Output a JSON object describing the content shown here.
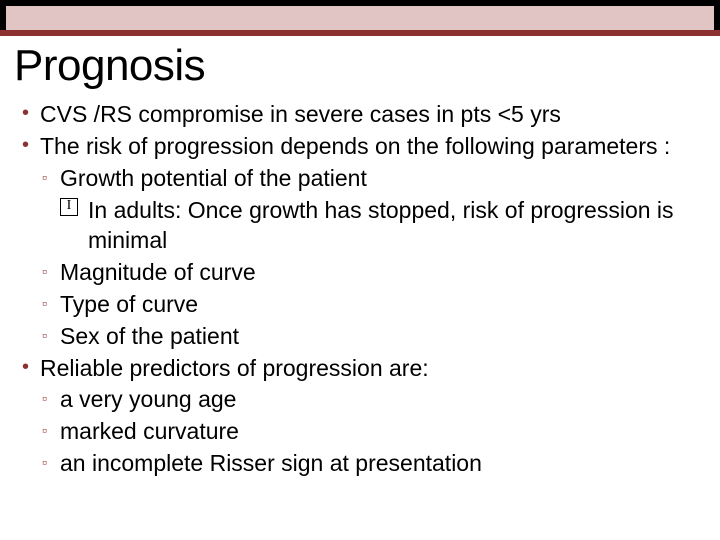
{
  "colors": {
    "accent": "#8c3030",
    "sub_bar": "#e1c5c5",
    "top": "#000000",
    "bg": "#ffffff",
    "text": "#000000"
  },
  "typography": {
    "title_fontsize": 44,
    "body_fontsize": 23,
    "font_family": "Trebuchet MS"
  },
  "title": "Prognosis",
  "bullets": [
    "CVS /RS compromise in severe cases in pts <5 yrs",
    "The risk of progression depends on the following parameters :",
    "Reliable predictors of progression are:"
  ],
  "params_sub": [
    "Growth potential of the patient",
    "Magnitude of curve",
    "Type of curve",
    "Sex of the patient"
  ],
  "params_sub_sub": "In adults: Once growth has stopped, risk of progression is minimal",
  "predictors_sub": [
    "a very young age",
    "marked curvature",
    "an incomplete Risser sign at presentation"
  ]
}
